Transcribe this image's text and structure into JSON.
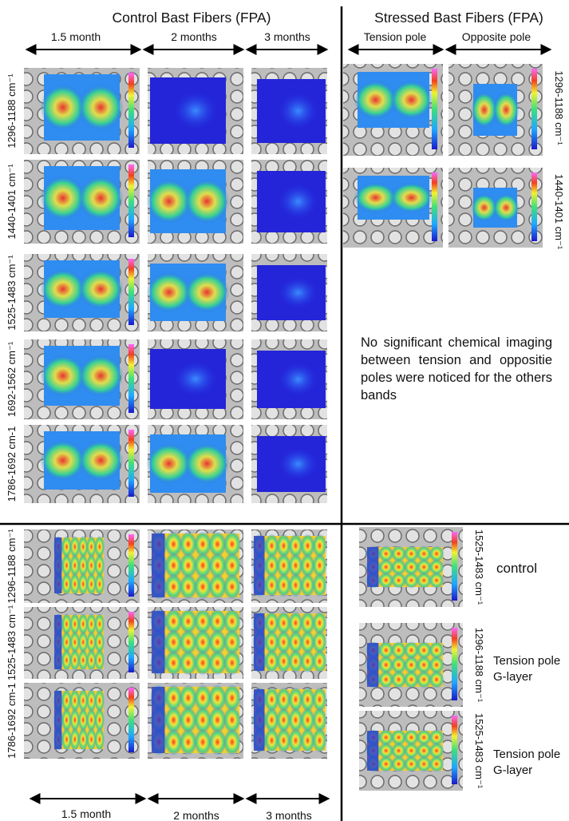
{
  "control": {
    "title": "Control Bast Fibers (FPA)",
    "columns": [
      "1.5 month",
      "2 months",
      "3 months"
    ],
    "bands": [
      "1296-1188 cm⁻¹",
      "1440-1401 cm⁻¹",
      "1525-1483 cm⁻¹",
      "1692-1562 cm⁻¹",
      "1786-1692 cm-1"
    ]
  },
  "stressed": {
    "title": "Stressed Bast Fibers (FPA)",
    "columns": [
      "Tension pole",
      "Opposite pole"
    ],
    "bands": [
      "1296-1188 cm⁻¹",
      "1440-1401 cm⁻¹"
    ],
    "note": "No significant chemical imaging between tension and oppositie poles were noticed for the others bands"
  },
  "lower_left": {
    "bands": [
      "1296-1188 cm⁻¹",
      "1525-1483 cm⁻¹",
      "1786-1692 cm-1"
    ],
    "columns": [
      "1.5 month",
      "2 months",
      "3 months"
    ]
  },
  "lower_right": {
    "bands": [
      "1525-1483 cm⁻¹",
      "1296-1188 cm⁻¹",
      "1525-1483 cm⁻¹"
    ],
    "captions": [
      [
        "control"
      ],
      [
        "Tension pole",
        "G-layer"
      ],
      [
        "Tension pole",
        "G-layer"
      ]
    ]
  }
}
